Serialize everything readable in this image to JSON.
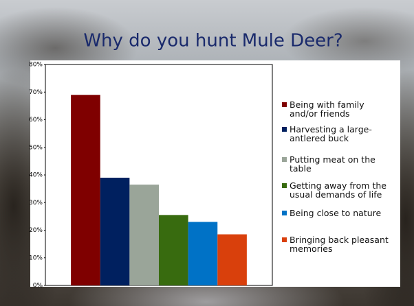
{
  "chart_data": {
    "type": "bar",
    "title": "Why do you hunt Mule Deer?",
    "categories": [
      null
    ],
    "series": [
      {
        "name": "Being with family and/or friends",
        "color": "#7f0000",
        "values": [
          69
        ]
      },
      {
        "name": "Harvesting a large-antlered buck",
        "color": "#00205f",
        "values": [
          39
        ]
      },
      {
        "name": "Putting meat on the table",
        "color": "#9aa599",
        "values": [
          36.5
        ]
      },
      {
        "name": "Getting away from the usual demands of life",
        "color": "#386b0f",
        "values": [
          25.5
        ]
      },
      {
        "name": "Being close to nature",
        "color": "#0072c6",
        "values": [
          23
        ]
      },
      {
        "name": "Bringing back pleasant memories",
        "color": "#d9400c",
        "values": [
          18.5
        ]
      }
    ],
    "ylim": [
      0,
      80
    ],
    "yticks": [
      {
        "value": 0,
        "label": "0%"
      },
      {
        "value": 10,
        "label": "10%"
      },
      {
        "value": 20,
        "label": "20%"
      },
      {
        "value": 30,
        "label": "30%"
      },
      {
        "value": 40,
        "label": "40%"
      },
      {
        "value": 50,
        "label": "50%"
      },
      {
        "value": 60,
        "label": "60%"
      },
      {
        "value": 70,
        "label": "70%"
      },
      {
        "value": 80,
        "label": "80%"
      }
    ],
    "legend": "right"
  }
}
